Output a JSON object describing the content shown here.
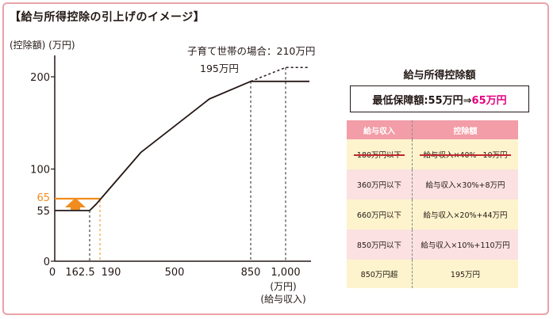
{
  "title": "【給与所得控除の引上げのイメージ】",
  "chart_data": {
    "type": "line",
    "ylabel": "(控除額) (万円)",
    "xlabel_unit": "(万円)",
    "xlabel": "(給与収入)",
    "x_ticks": [
      "0",
      "162.5",
      "190",
      "500",
      "850",
      "1,000"
    ],
    "y_ticks": [
      "0",
      "55",
      "65",
      "100",
      "200"
    ],
    "xlim": [
      0,
      1100
    ],
    "ylim": [
      0,
      230
    ],
    "series": [
      {
        "name": "",
        "x": [
          0,
          162.5,
          180,
          360,
          660,
          850,
          1100
        ],
        "y": [
          55,
          55,
          62,
          118,
          176,
          195,
          195
        ]
      },
      {
        "name": "",
        "x": [
          850,
          1000,
          1100
        ],
        "y": [
          195,
          210,
          210
        ]
      }
    ],
    "annotations": {
      "childcare": "子育て世帯の場合：210万円",
      "cap": "195万円"
    },
    "colors": {
      "accent": "#f08d1e",
      "line": "#231815"
    }
  },
  "panel": {
    "heading": "給与所得控除額",
    "min_label": "最低保障額:55万円⇒",
    "min_value": "65万円",
    "headers": [
      "給与収入",
      "控除額"
    ],
    "rows": [
      {
        "income": "180万円以下",
        "deduction": "給与収入×40%−10万円",
        "struck": true
      },
      {
        "income": "360万円以下",
        "deduction": "給与収入×30%+8万円",
        "struck": false
      },
      {
        "income": "660万円以下",
        "deduction": "給与収入×20%+44万円",
        "struck": false
      },
      {
        "income": "850万円以下",
        "deduction": "給与収入×10%+110万円",
        "struck": false
      },
      {
        "income": "850万円超",
        "deduction": "195万円",
        "struck": false
      }
    ]
  }
}
